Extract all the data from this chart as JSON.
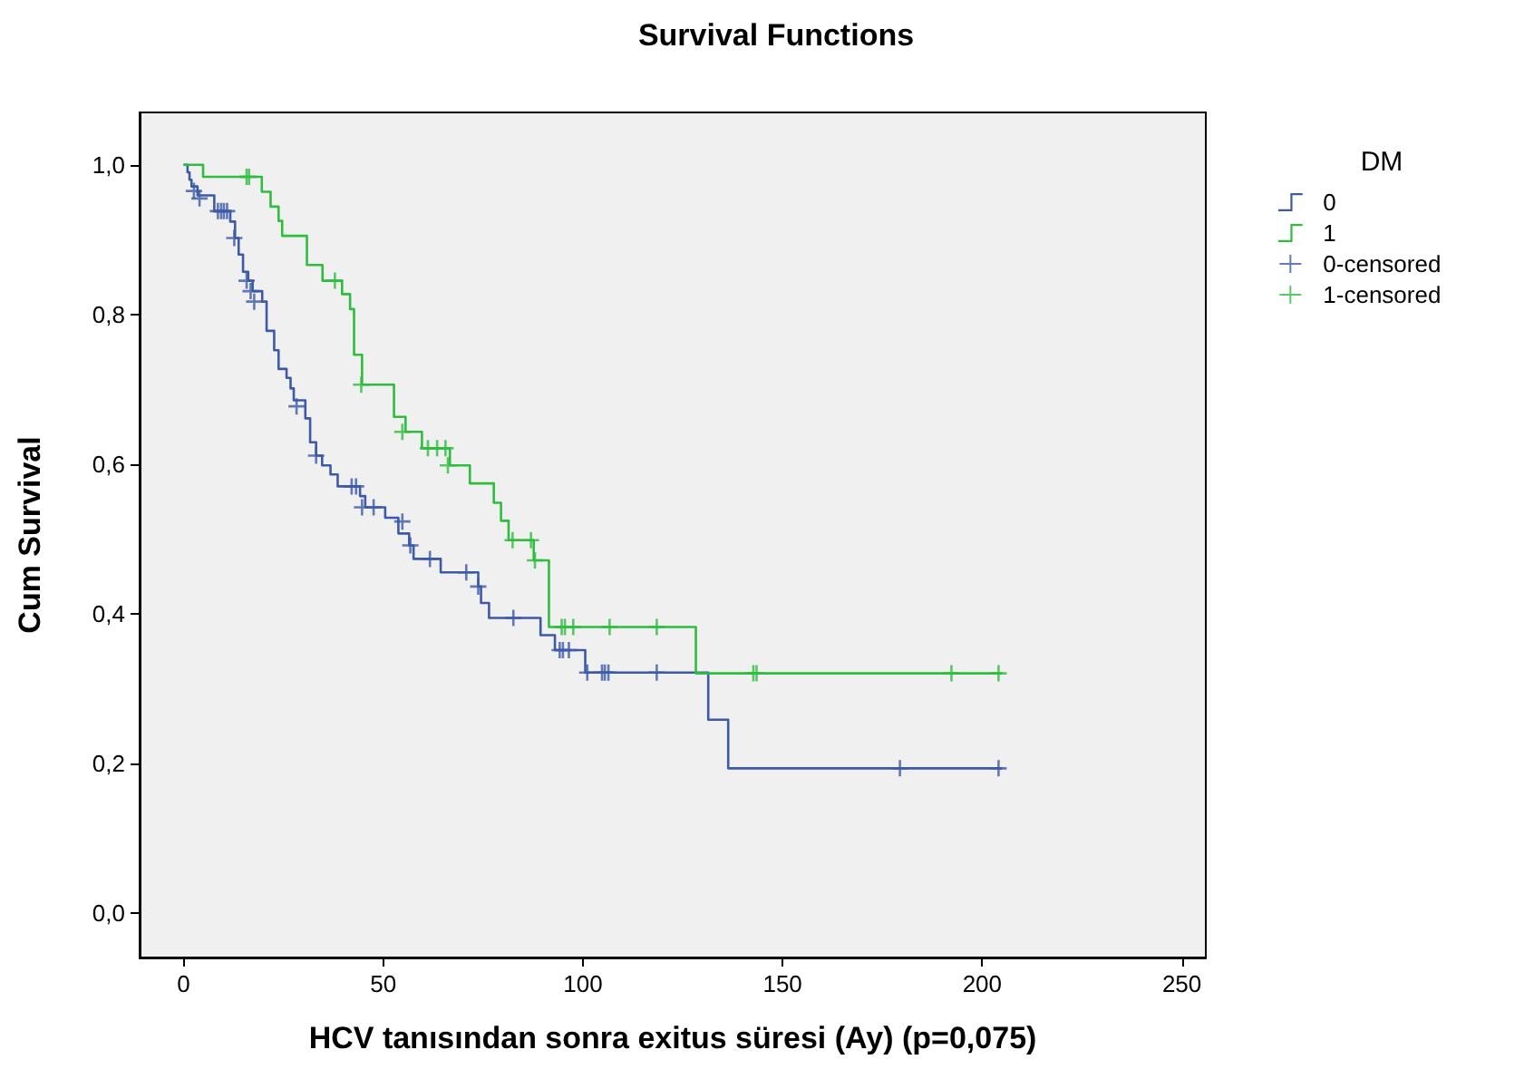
{
  "chart_data": {
    "type": "step",
    "title": "Survival Functions",
    "xlabel": "HCV tanısından sonra exitus süresi (Ay) (p=0,075)",
    "ylabel": "Cum Survival",
    "legend_title": "DM",
    "legend": "right",
    "grid": false,
    "xlim": [
      -11,
      256
    ],
    "xticks": [
      0,
      50,
      100,
      150,
      200,
      250
    ],
    "ylim": [
      -0.06,
      1.07
    ],
    "yticks": [
      {
        "value": 0,
        "label": "0,0"
      },
      {
        "value": 0.2,
        "label": "0,2"
      },
      {
        "value": 0.4,
        "label": "0,4"
      },
      {
        "value": 0.6,
        "label": "0,6"
      },
      {
        "value": 0.8,
        "label": "0,8"
      },
      {
        "value": 1,
        "label": "1,0"
      }
    ],
    "series": [
      {
        "name": "0",
        "color": "#3c5aa8",
        "x": [
          0,
          1,
          1.5,
          2,
          3.5,
          7.7,
          11.7,
          12.9,
          13.8,
          14.9,
          16.2,
          17.3,
          19.7,
          20.8,
          22.7,
          23.8,
          25.8,
          26.8,
          27.6,
          30.5,
          31.7,
          33.2,
          34.7,
          36.8,
          38.6,
          44.2,
          45.5,
          50.5,
          53.8,
          56.5,
          57.6,
          64.4,
          73.8,
          74.5,
          76.5,
          89.4,
          93,
          100.6,
          131.4,
          136.4,
          205
        ],
        "values": [
          1,
          0.99,
          0.98,
          0.971,
          0.959,
          0.938,
          0.924,
          0.902,
          0.88,
          0.857,
          0.845,
          0.831,
          0.817,
          0.778,
          0.752,
          0.727,
          0.715,
          0.701,
          0.685,
          0.661,
          0.629,
          0.611,
          0.598,
          0.586,
          0.57,
          0.557,
          0.542,
          0.528,
          0.507,
          0.491,
          0.473,
          0.455,
          0.436,
          0.414,
          0.394,
          0.371,
          0.351,
          0.321,
          0.258,
          0.193,
          0.193
        ]
      },
      {
        "name": "1",
        "color": "#2ebd3e",
        "x": [
          0,
          4.9,
          19.6,
          21.8,
          23.8,
          24.7,
          30.9,
          34.8,
          39.7,
          41.7,
          42.7,
          44.7,
          52.7,
          55.6,
          59.7,
          66.7,
          71.7,
          77.7,
          79.5,
          81.4,
          87.7,
          91.5,
          128.3,
          205
        ],
        "values": [
          1,
          0.984,
          0.964,
          0.944,
          0.925,
          0.905,
          0.866,
          0.845,
          0.827,
          0.807,
          0.746,
          0.706,
          0.663,
          0.643,
          0.621,
          0.598,
          0.574,
          0.548,
          0.524,
          0.498,
          0.471,
          0.382,
          0.32,
          0.32
        ]
      },
      {
        "name": "0-censored",
        "type": "scatter",
        "marker": "cross",
        "color": "#3c5aa8",
        "x": [
          2.6,
          4,
          8.6,
          9.4,
          10.1,
          10.9,
          12.7,
          15.8,
          16.8,
          17.7,
          28.3,
          33.2,
          42.1,
          43.2,
          44.7,
          47.6,
          54.8,
          56.8,
          61.7,
          70.8,
          73.8,
          82.6,
          94.2,
          95,
          96.5,
          101.1,
          104.8,
          105.5,
          106.4,
          118.5,
          179.4,
          204.1
        ],
        "values": [
          0.965,
          0.955,
          0.938,
          0.938,
          0.938,
          0.938,
          0.902,
          0.845,
          0.831,
          0.817,
          0.677,
          0.611,
          0.57,
          0.57,
          0.542,
          0.542,
          0.523,
          0.491,
          0.473,
          0.455,
          0.436,
          0.394,
          0.351,
          0.351,
          0.351,
          0.321,
          0.321,
          0.321,
          0.321,
          0.321,
          0.193,
          0.193
        ]
      },
      {
        "name": "1-censored",
        "type": "scatter",
        "marker": "cross",
        "color": "#2ebd3e",
        "x": [
          15.8,
          16.4,
          37.9,
          44.5,
          54.8,
          61.2,
          63.5,
          65.6,
          66.2,
          82.4,
          87,
          88,
          94.7,
          95.5,
          97.6,
          106.7,
          118.5,
          142.7,
          143.5,
          192.3,
          204.1
        ],
        "values": [
          0.984,
          0.984,
          0.845,
          0.706,
          0.643,
          0.621,
          0.621,
          0.621,
          0.598,
          0.498,
          0.498,
          0.471,
          0.382,
          0.382,
          0.382,
          0.382,
          0.382,
          0.32,
          0.32,
          0.32,
          0.32
        ]
      }
    ]
  }
}
